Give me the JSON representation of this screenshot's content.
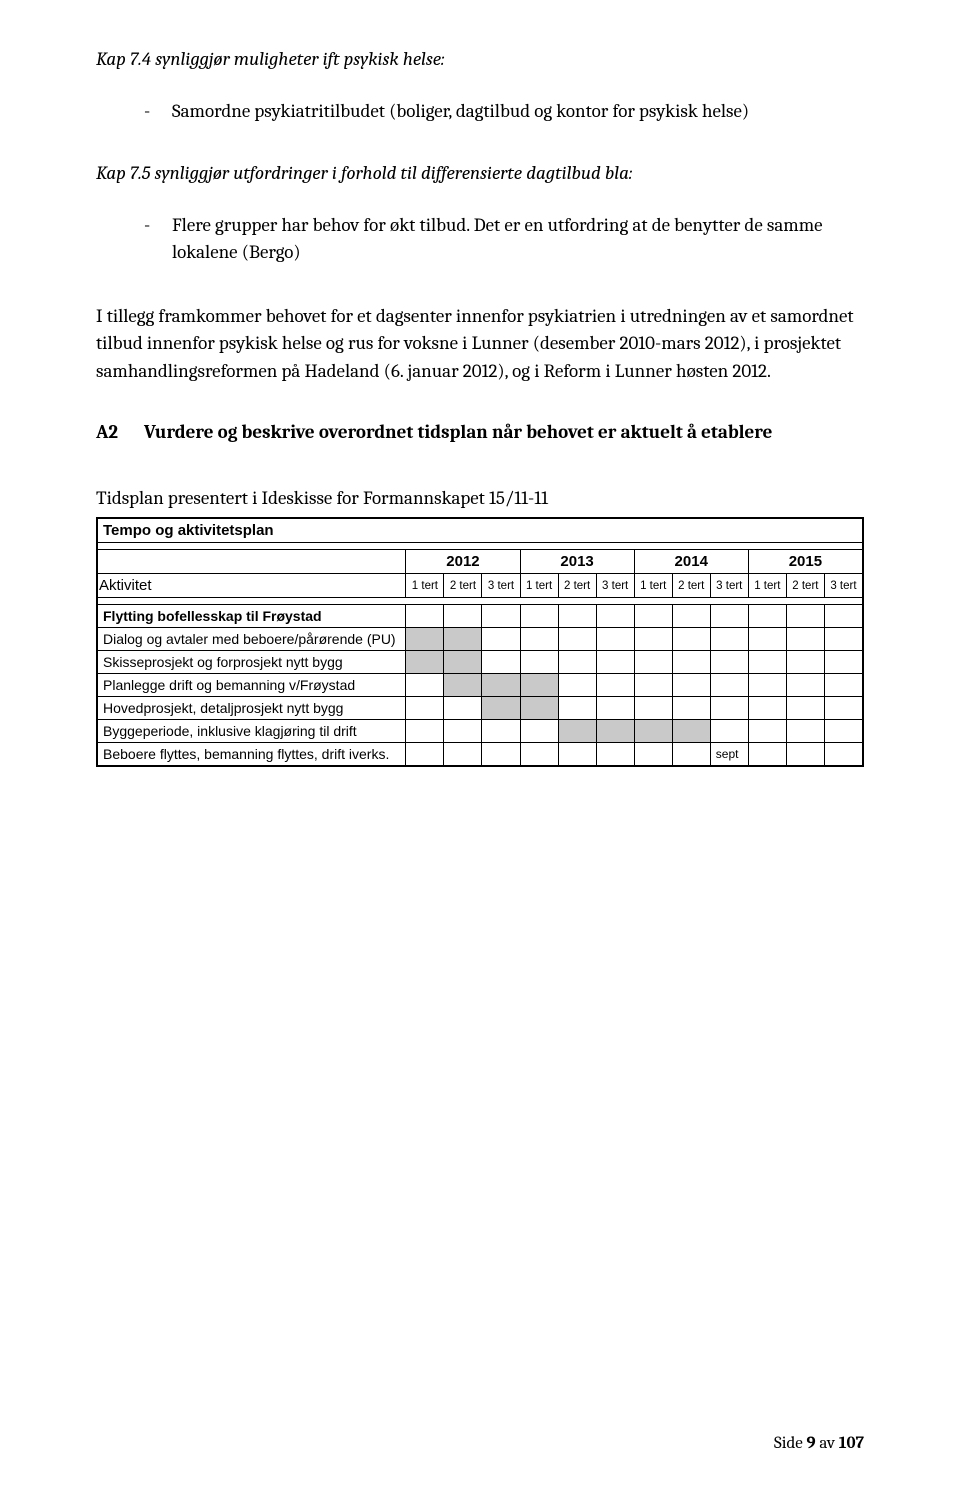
{
  "kap74": {
    "heading": "Kap 7.4 synliggjør muligheter ift psykisk helse:",
    "bullet": "Samordne psykiatritilbudet (boliger, dagtilbud og kontor for psykisk helse)"
  },
  "kap75": {
    "heading": "Kap 7.5 synliggjør utfordringer i forhold til differensierte dagtilbud bla:",
    "bullet": "Flere grupper har behov for økt tilbud. Det er en utfordring at de benytter de samme lokalene (Bergo)"
  },
  "body_para": "I tillegg framkommer behovet for et dagsenter innenfor psykiatrien i utredningen av et samordnet tilbud innenfor psykisk helse og rus for voksne i Lunner (desember 2010-mars 2012), i prosjektet samhandlingsreformen på Hadeland (6. januar 2012), og i Reform i Lunner høsten 2012.",
  "a2": {
    "label": "A2",
    "text": "Vurdere og beskrive overordnet tidsplan når behovet er aktuelt å etablere"
  },
  "subheading": "Tidsplan presentert i Ideskisse for Formannskapet 15/11-11",
  "table": {
    "title": "Tempo og aktivitetsplan",
    "aktivitet_label": "Aktivitet",
    "years": [
      "2012",
      "2013",
      "2014",
      "2015"
    ],
    "terts": [
      "1 tert",
      "2 tert",
      "3 tert"
    ],
    "rows": [
      {
        "label": "Flytting bofellesskap til Frøystad",
        "bold": true,
        "shaded": [],
        "text_cells": {}
      },
      {
        "label": "Dialog og avtaler med beboere/pårørende (PU)",
        "bold": false,
        "shaded": [
          0,
          1
        ],
        "text_cells": {}
      },
      {
        "label": "Skisseprosjekt og forprosjekt nytt bygg",
        "bold": false,
        "shaded": [
          0,
          1
        ],
        "text_cells": {}
      },
      {
        "label": "Planlegge drift og bemanning v/Frøystad",
        "bold": false,
        "shaded": [
          1,
          2,
          3
        ],
        "text_cells": {}
      },
      {
        "label": "Hovedprosjekt, detaljprosjekt nytt bygg",
        "bold": false,
        "shaded": [
          2,
          3
        ],
        "text_cells": {}
      },
      {
        "label": "Byggeperiode, inklusive klagjøring til drift",
        "bold": false,
        "shaded": [
          4,
          5,
          6,
          7
        ],
        "text_cells": {}
      },
      {
        "label": "Beboere flyttes, bemanning flyttes, drift iverks.",
        "bold": false,
        "shaded": [],
        "text_cells": {
          "8": "sept"
        }
      }
    ]
  },
  "footer": {
    "prefix": "Side ",
    "page": "9",
    "mid": " av ",
    "total": "107"
  }
}
